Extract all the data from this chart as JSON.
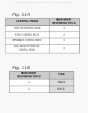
{
  "bg_color": "#f8f8f8",
  "header_bg": "#cccccc",
  "cell_bg": "#ffffff",
  "border_color": "#666666",
  "text_color": "#222222",
  "patent_header": "Patent Application Publication    Sep. 4, 2012    Sheet 34 of 47    US 2012/0226383 P1",
  "fig11a_label": "Fig. 11A",
  "fig11a_col1_header": "CONTROL MODE",
  "fig11a_col2_header": "ENVIRONMENT\nINFORMATION TYPE ID",
  "fig11a_rows": [
    [
      "POSITION CONTROL MODE",
      "1"
    ],
    [
      "FORCE CONTROL MODE",
      "2"
    ],
    [
      "IMPEDANCE CONTROL MODE",
      "1"
    ],
    [
      "HIGH-PRIORITY POSITION\nCONTROL MODE",
      "2"
    ]
  ],
  "fig11b_label": "Fig. 11B",
  "fig11b_col1_header": "ENVIRONMENT\nINFORMATION TYPE ID",
  "fig11b_col2_header": "TYPE",
  "fig11b_rows": [
    [
      "1",
      "IMAGE"
    ],
    [
      "2",
      "FORCE"
    ]
  ]
}
